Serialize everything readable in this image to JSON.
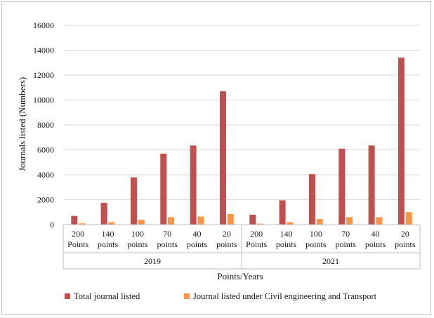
{
  "chart_data": {
    "type": "bar",
    "ylabel": "Journals listed (Numbers)",
    "xlabel": "Points/Years",
    "ylim": [
      0,
      16000
    ],
    "yticks": [
      0,
      2000,
      4000,
      6000,
      8000,
      10000,
      12000,
      14000,
      16000
    ],
    "grid": true,
    "legend_position": "bottom",
    "groups": [
      {
        "label": "2019",
        "categories": [
          [
            "200",
            "Points"
          ],
          [
            "140",
            "points"
          ],
          [
            "100",
            "points"
          ],
          [
            "70",
            "points"
          ],
          [
            "40",
            "points"
          ],
          [
            "20",
            "points"
          ]
        ]
      },
      {
        "label": "2021",
        "categories": [
          [
            "200",
            "Points"
          ],
          [
            "140",
            "points"
          ],
          [
            "100",
            "points"
          ],
          [
            "70",
            "points"
          ],
          [
            "40",
            "points"
          ],
          [
            "20",
            "points"
          ]
        ]
      }
    ],
    "series": [
      {
        "name": "Total  journal listed",
        "color": "#c0504d",
        "values": [
          700,
          1750,
          3800,
          5700,
          6350,
          10700,
          800,
          1950,
          4050,
          6100,
          6350,
          13400
        ]
      },
      {
        "name": "Journal listed under Civil engineering and Transport",
        "color": "#f79646",
        "values": [
          100,
          200,
          400,
          600,
          650,
          850,
          80,
          200,
          450,
          600,
          600,
          1000
        ]
      }
    ]
  }
}
